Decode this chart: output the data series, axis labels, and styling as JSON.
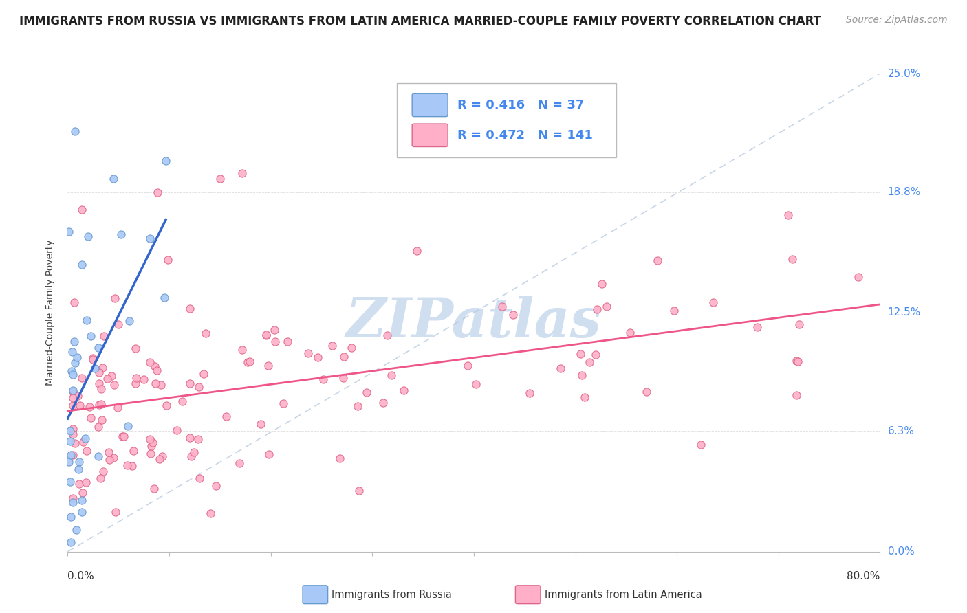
{
  "title": "IMMIGRANTS FROM RUSSIA VS IMMIGRANTS FROM LATIN AMERICA MARRIED-COUPLE FAMILY POVERTY CORRELATION CHART",
  "source": "Source: ZipAtlas.com",
  "ylabel": "Married-Couple Family Poverty",
  "ytick_labels": [
    "0.0%",
    "6.3%",
    "12.5%",
    "18.8%",
    "25.0%"
  ],
  "ytick_values": [
    0.0,
    6.3,
    12.5,
    18.8,
    25.0
  ],
  "xlim": [
    0.0,
    80.0
  ],
  "ylim": [
    0.0,
    25.0
  ],
  "russia_R": 0.416,
  "russia_N": 37,
  "latinam_R": 0.472,
  "latinam_N": 141,
  "russia_color": "#a8c8f8",
  "russia_edge": "#6699cc",
  "russia_line_color": "#3366cc",
  "latinam_color": "#ffb0c8",
  "latinam_edge": "#dd6688",
  "latinam_line_color": "#ee5588",
  "diagonal_color": "#b0c4de",
  "watermark_color": "#d0dff0",
  "background_color": "#ffffff",
  "grid_color": "#dddddd",
  "right_label_color": "#4488ee",
  "title_fontsize": 12,
  "source_fontsize": 10,
  "tick_label_fontsize": 11,
  "legend_fontsize": 13
}
